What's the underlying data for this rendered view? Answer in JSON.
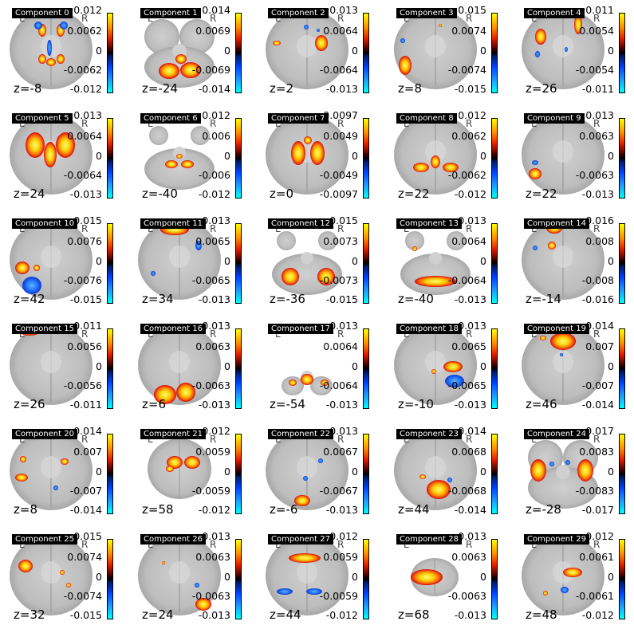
{
  "figure": {
    "hemisphere_left": "L",
    "hemisphere_right": "R",
    "components": [
      {
        "title": "Component 0",
        "z": "z=-8",
        "max": "0.012",
        "mid": "0.0062",
        "zero": "0",
        "nmid": "-0.0062",
        "min": "-0.012"
      },
      {
        "title": "Component 1",
        "z": "z=-24",
        "max": "0.014",
        "mid": "0.0069",
        "zero": "0",
        "nmid": "-0.0069",
        "min": "-0.014"
      },
      {
        "title": "Component 2",
        "z": "z=2",
        "max": "0.013",
        "mid": "0.0064",
        "zero": "0",
        "nmid": "-0.0064",
        "min": "-0.013"
      },
      {
        "title": "Component 3",
        "z": "z=8",
        "max": "0.015",
        "mid": "0.0074",
        "zero": "0",
        "nmid": "-0.0074",
        "min": "-0.015"
      },
      {
        "title": "Component 4",
        "z": "z=26",
        "max": "0.011",
        "mid": "0.0054",
        "zero": "0",
        "nmid": "-0.0054",
        "min": "-0.011"
      },
      {
        "title": "Component 5",
        "z": "z=24",
        "max": "0.013",
        "mid": "0.0064",
        "zero": "0",
        "nmid": "-0.0064",
        "min": "-0.013"
      },
      {
        "title": "Component 6",
        "z": "z=-40",
        "max": "0.012",
        "mid": "0.006",
        "zero": "0",
        "nmid": "-0.006",
        "min": "-0.012"
      },
      {
        "title": "Component 7",
        "z": "z=0",
        "max": "0.0097",
        "mid": "0.0049",
        "zero": "0",
        "nmid": "-0.0049",
        "min": "-0.0097"
      },
      {
        "title": "Component 8",
        "z": "z=22",
        "max": "0.012",
        "mid": "0.0062",
        "zero": "0",
        "nmid": "-0.0062",
        "min": "-0.012"
      },
      {
        "title": "Component 9",
        "z": "z=22",
        "max": "0.013",
        "mid": "0.0063",
        "zero": "0",
        "nmid": "-0.0063",
        "min": "-0.013"
      },
      {
        "title": "Component 10",
        "z": "z=42",
        "max": "0.015",
        "mid": "0.0076",
        "zero": "0",
        "nmid": "-0.0076",
        "min": "-0.015"
      },
      {
        "title": "Component 11",
        "z": "z=34",
        "max": "0.013",
        "mid": "0.0065",
        "zero": "0",
        "nmid": "-0.0065",
        "min": "-0.013"
      },
      {
        "title": "Component 12",
        "z": "z=-36",
        "max": "0.015",
        "mid": "0.0073",
        "zero": "0",
        "nmid": "-0.0073",
        "min": "-0.015"
      },
      {
        "title": "Component 13",
        "z": "z=-40",
        "max": "0.013",
        "mid": "0.0064",
        "zero": "0",
        "nmid": "-0.0064",
        "min": "-0.013"
      },
      {
        "title": "Component 14",
        "z": "z=-14",
        "max": "0.016",
        "mid": "0.008",
        "zero": "0",
        "nmid": "-0.008",
        "min": "-0.016"
      },
      {
        "title": "Component 15",
        "z": "z=26",
        "max": "0.011",
        "mid": "0.0056",
        "zero": "0",
        "nmid": "-0.0056",
        "min": "-0.011"
      },
      {
        "title": "Component 16",
        "z": "z=6",
        "max": "0.013",
        "mid": "0.0063",
        "zero": "0",
        "nmid": "-0.0063",
        "min": "-0.013"
      },
      {
        "title": "Component 17",
        "z": "z=-54",
        "max": "0.013",
        "mid": "0.0064",
        "zero": "0",
        "nmid": "-0.0064",
        "min": "-0.013"
      },
      {
        "title": "Component 18",
        "z": "z=-10",
        "max": "0.013",
        "mid": "0.0065",
        "zero": "0",
        "nmid": "-0.0065",
        "min": "-0.013"
      },
      {
        "title": "Component 19",
        "z": "z=46",
        "max": "0.014",
        "mid": "0.007",
        "zero": "0",
        "nmid": "-0.007",
        "min": "-0.014"
      },
      {
        "title": "Component 20",
        "z": "z=8",
        "max": "0.014",
        "mid": "0.007",
        "zero": "0",
        "nmid": "-0.007",
        "min": "-0.014"
      },
      {
        "title": "Component 21",
        "z": "z=58",
        "max": "0.012",
        "mid": "0.0059",
        "zero": "0",
        "nmid": "-0.0059",
        "min": "-0.012"
      },
      {
        "title": "Component 22",
        "z": "z=-6",
        "max": "0.013",
        "mid": "0.0067",
        "zero": "0",
        "nmid": "-0.0067",
        "min": "-0.013"
      },
      {
        "title": "Component 23",
        "z": "z=44",
        "max": "0.014",
        "mid": "0.0068",
        "zero": "0",
        "nmid": "-0.0068",
        "min": "-0.014"
      },
      {
        "title": "Component 24",
        "z": "z=-28",
        "max": "0.017",
        "mid": "0.0083",
        "zero": "0",
        "nmid": "-0.0083",
        "min": "-0.017"
      },
      {
        "title": "Component 25",
        "z": "z=32",
        "max": "0.015",
        "mid": "0.0074",
        "zero": "0",
        "nmid": "-0.0074",
        "min": "-0.015"
      },
      {
        "title": "Component 26",
        "z": "z=24",
        "max": "0.013",
        "mid": "0.0063",
        "zero": "0",
        "nmid": "-0.0063",
        "min": "-0.013"
      },
      {
        "title": "Component 27",
        "z": "z=44",
        "max": "0.012",
        "mid": "0.0059",
        "zero": "0",
        "nmid": "-0.0059",
        "min": "-0.012"
      },
      {
        "title": "Component 28",
        "z": "z=68",
        "max": "0.013",
        "mid": "0.0063",
        "zero": "0",
        "nmid": "-0.0063",
        "min": "-0.013"
      },
      {
        "title": "Component 29",
        "z": "z=48",
        "max": "0.012",
        "mid": "0.0061",
        "zero": "0",
        "nmid": "-0.0061",
        "min": "-0.012"
      }
    ]
  }
}
